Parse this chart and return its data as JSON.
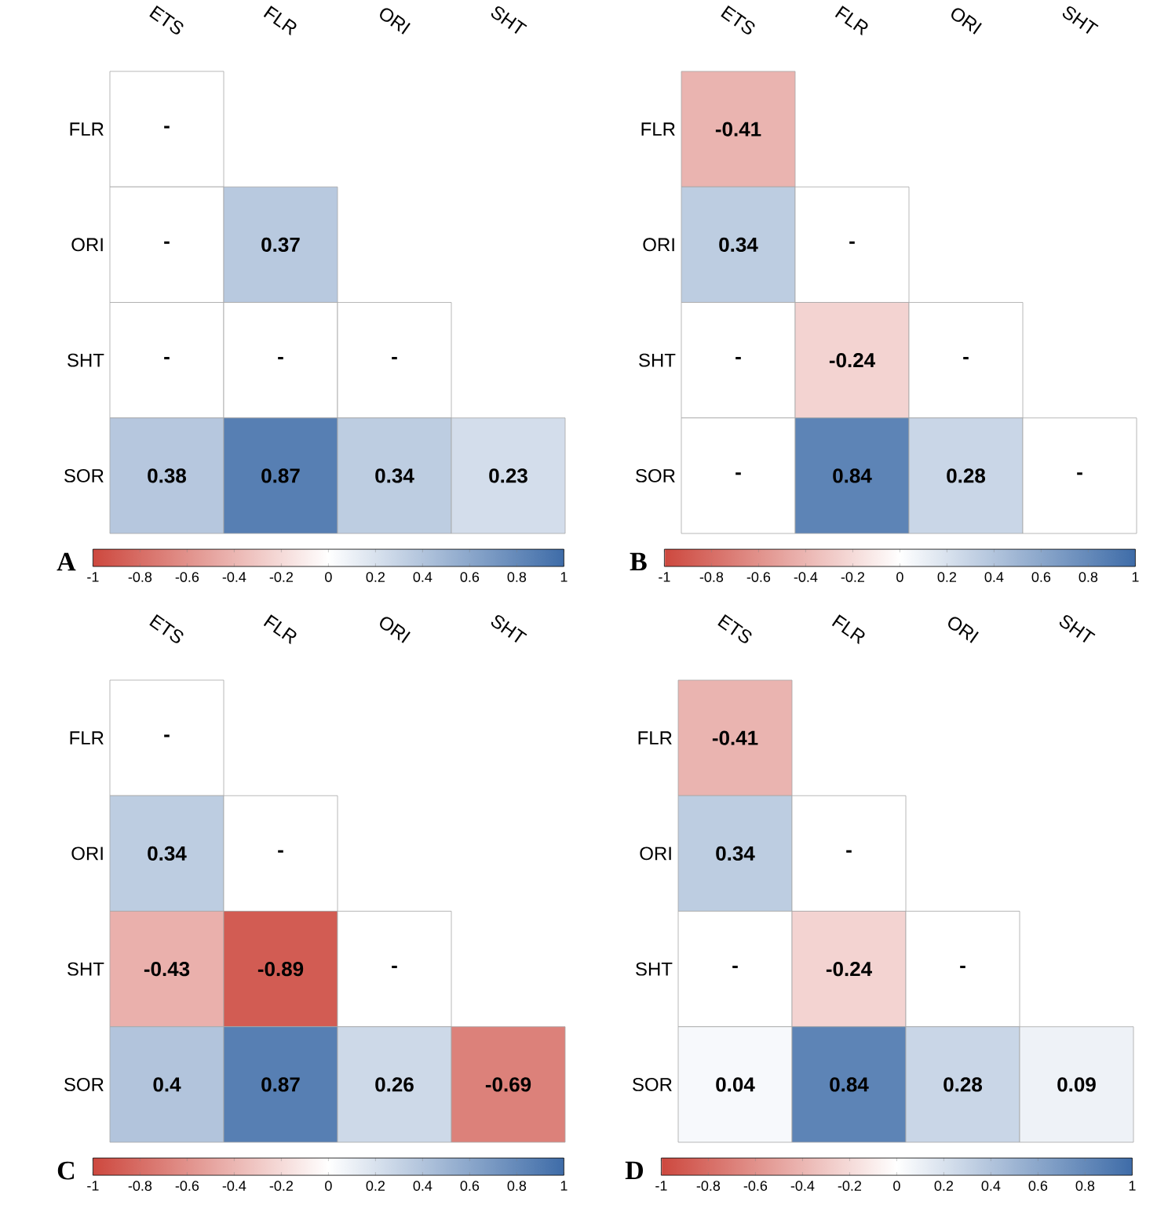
{
  "chart_data": [
    {
      "type": "heatmap",
      "title": "A",
      "categories": [
        "ETS",
        "FLR",
        "ORI",
        "SHT"
      ],
      "y_categories": [
        "FLR",
        "ORI",
        "SHT",
        "SOR"
      ],
      "cells": [
        [
          null,
          null,
          null,
          null
        ],
        [
          null,
          0.37,
          null,
          null
        ],
        [
          null,
          null,
          null,
          null
        ],
        [
          0.38,
          0.87,
          0.34,
          0.23
        ]
      ],
      "cell_labels": [
        [
          "-",
          null,
          null,
          null
        ],
        [
          "-",
          "0.37",
          null,
          null
        ],
        [
          "-",
          "-",
          "-",
          null
        ],
        [
          "0.38",
          "0.87",
          "0.34",
          "0.23"
        ]
      ],
      "clim": [
        -1,
        1
      ],
      "cticks": [
        -1,
        -0.8,
        -0.6,
        -0.4,
        -0.2,
        0,
        0.2,
        0.4,
        0.6,
        0.8,
        1
      ]
    },
    {
      "type": "heatmap",
      "title": "B",
      "categories": [
        "ETS",
        "FLR",
        "ORI",
        "SHT"
      ],
      "y_categories": [
        "FLR",
        "ORI",
        "SHT",
        "SOR"
      ],
      "cells": [
        [
          -0.41,
          null,
          null,
          null
        ],
        [
          0.34,
          null,
          null,
          null
        ],
        [
          null,
          -0.24,
          null,
          null
        ],
        [
          null,
          0.84,
          0.28,
          null
        ]
      ],
      "cell_labels": [
        [
          "-0.41",
          null,
          null,
          null
        ],
        [
          "0.34",
          "-",
          null,
          null
        ],
        [
          "-",
          "-0.24",
          "-",
          null
        ],
        [
          "-",
          "0.84",
          "0.28",
          "-"
        ]
      ],
      "clim": [
        -1,
        1
      ],
      "cticks": [
        -1,
        -0.8,
        -0.6,
        -0.4,
        -0.2,
        0,
        0.2,
        0.4,
        0.6,
        0.8,
        1
      ]
    },
    {
      "type": "heatmap",
      "title": "C",
      "categories": [
        "ETS",
        "FLR",
        "ORI",
        "SHT"
      ],
      "y_categories": [
        "FLR",
        "ORI",
        "SHT",
        "SOR"
      ],
      "cells": [
        [
          null,
          null,
          null,
          null
        ],
        [
          0.34,
          null,
          null,
          null
        ],
        [
          -0.43,
          -0.89,
          null,
          null
        ],
        [
          0.4,
          0.87,
          0.26,
          -0.69
        ]
      ],
      "cell_labels": [
        [
          "-",
          null,
          null,
          null
        ],
        [
          "0.34",
          "-",
          null,
          null
        ],
        [
          "-0.43",
          "-0.89",
          "-",
          null
        ],
        [
          "0.4",
          "0.87",
          "0.26",
          "-0.69"
        ]
      ],
      "clim": [
        -1,
        1
      ],
      "cticks": [
        -1,
        -0.8,
        -0.6,
        -0.4,
        -0.2,
        0,
        0.2,
        0.4,
        0.6,
        0.8,
        1
      ]
    },
    {
      "type": "heatmap",
      "title": "D",
      "categories": [
        "ETS",
        "FLR",
        "ORI",
        "SHT"
      ],
      "y_categories": [
        "FLR",
        "ORI",
        "SHT",
        "SOR"
      ],
      "cells": [
        [
          -0.41,
          null,
          null,
          null
        ],
        [
          0.34,
          null,
          null,
          null
        ],
        [
          null,
          -0.24,
          null,
          null
        ],
        [
          0.04,
          0.84,
          0.28,
          0.09
        ]
      ],
      "cell_labels": [
        [
          "-0.41",
          null,
          null,
          null
        ],
        [
          "0.34",
          "-",
          null,
          null
        ],
        [
          "-",
          "-0.24",
          "-",
          null
        ],
        [
          "0.04",
          "0.84",
          "0.28",
          "0.09"
        ]
      ],
      "clim": [
        -1,
        1
      ],
      "cticks": [
        -1,
        -0.8,
        -0.6,
        -0.4,
        -0.2,
        0,
        0.2,
        0.4,
        0.6,
        0.8,
        1
      ]
    }
  ]
}
